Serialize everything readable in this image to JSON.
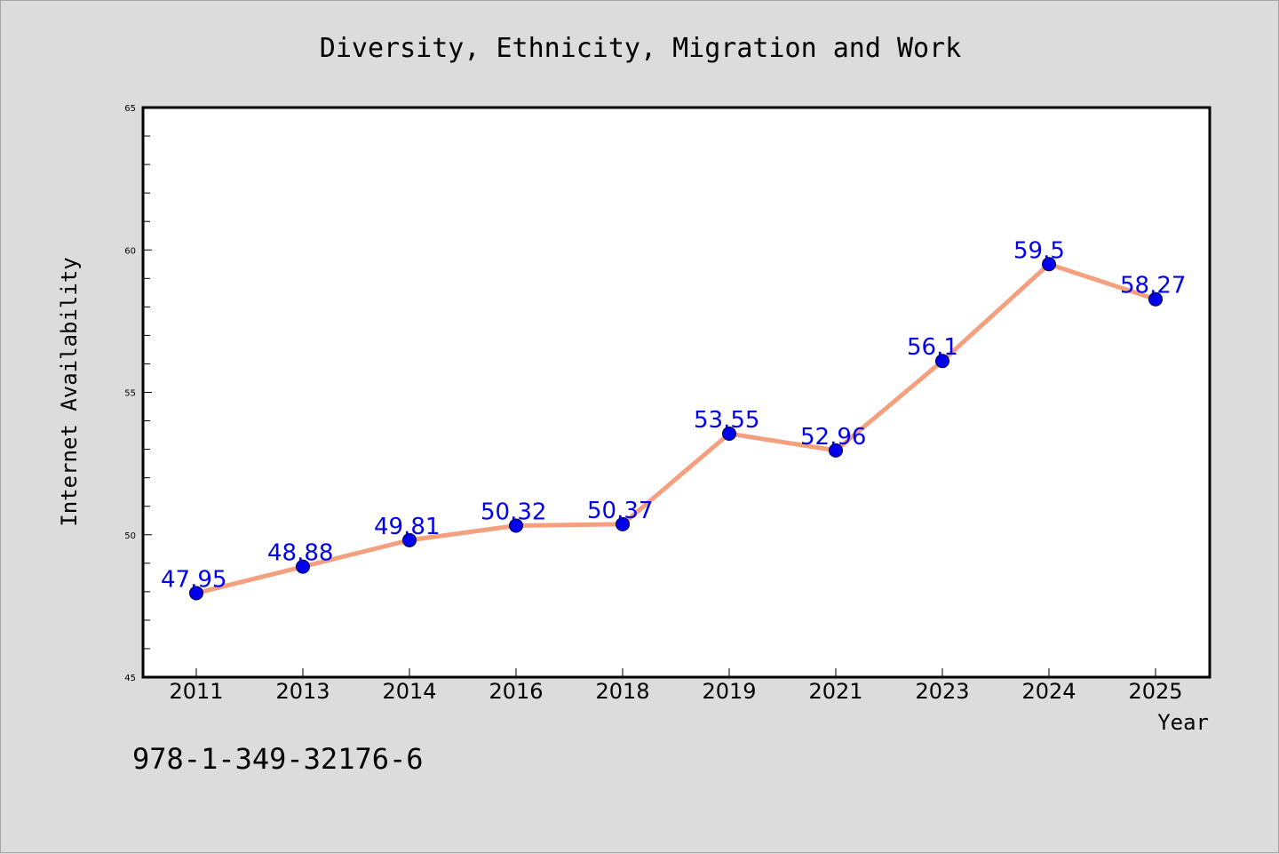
{
  "footer_text": "978-1-349-32176-6",
  "chart_data": {
    "type": "line",
    "title": "Diversity, Ethnicity, Migration and Work",
    "xlabel": "Year",
    "ylabel": "Internet Availability",
    "categories": [
      "2011",
      "2013",
      "2014",
      "2016",
      "2018",
      "2019",
      "2021",
      "2023",
      "2024",
      "2025"
    ],
    "series": [
      {
        "values": [
          47.95,
          48.88,
          49.81,
          50.32,
          50.37,
          53.55,
          52.96,
          56.1,
          59.5,
          58.27
        ],
        "data_labels": [
          "47.95",
          "48.88",
          "49.81",
          "50.32",
          "50.37",
          "53.55",
          "52.96",
          "56.1",
          "59.5",
          "58.27"
        ],
        "line_color": "#f4a07f",
        "marker_color": "#0000ee",
        "label_color": "#0000ee"
      }
    ],
    "ylim": [
      45,
      65
    ],
    "y_ticks": [
      "45",
      "50",
      "55",
      "60",
      "65"
    ],
    "grid": false,
    "legend": "none",
    "plot_background": "#ffffff",
    "figure_background": "#dcdcdc"
  }
}
